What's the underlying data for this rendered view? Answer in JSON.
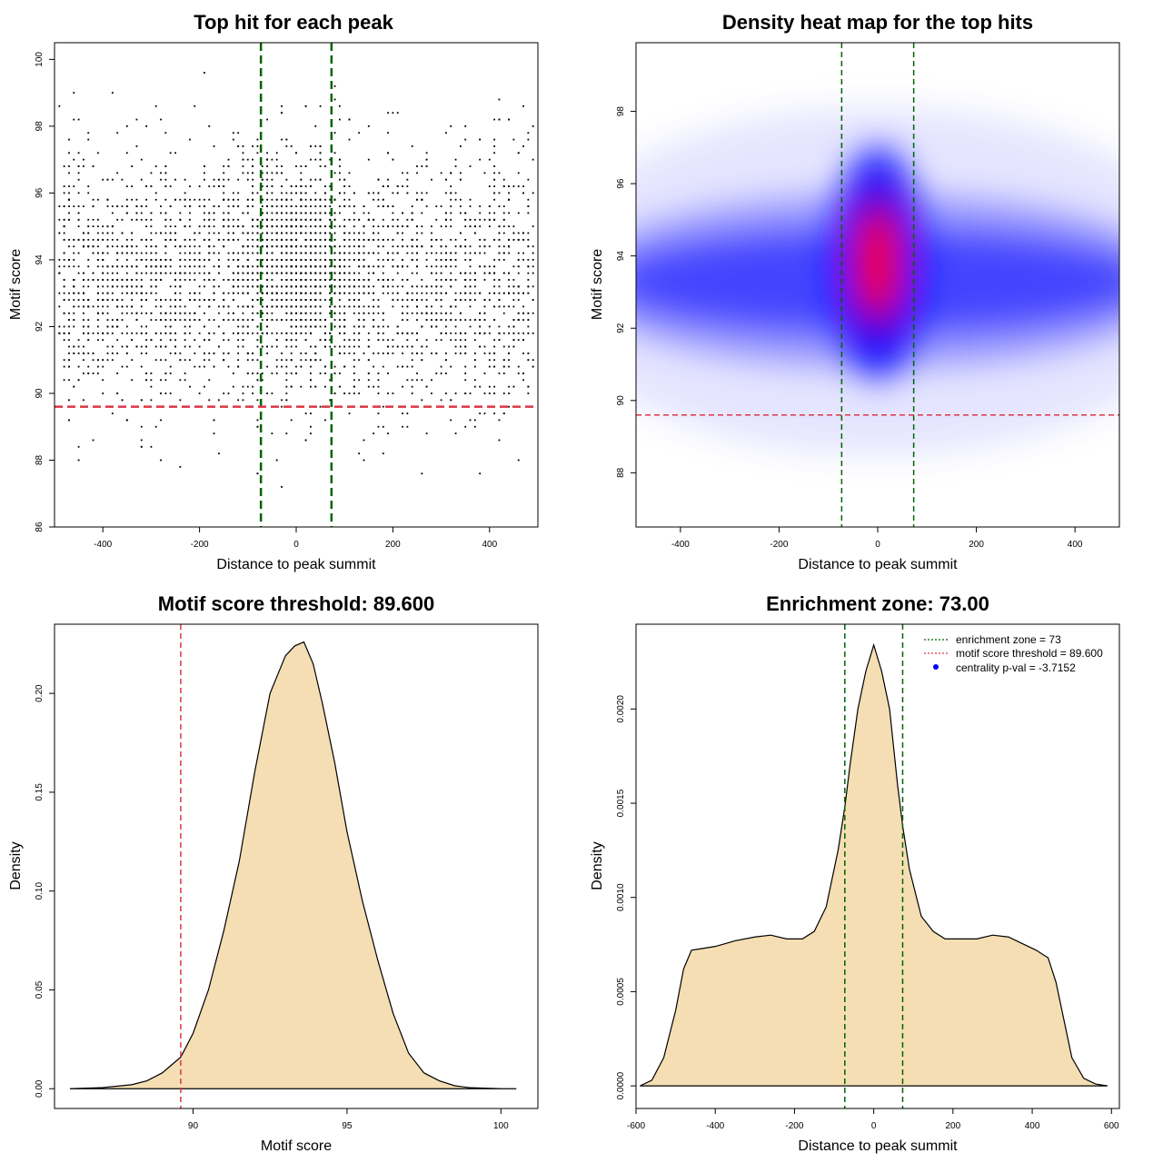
{
  "chart_data": [
    {
      "id": "scatter",
      "type": "scatter",
      "title": "Top hit for each peak",
      "xlabel": "Distance to peak summit",
      "ylabel": "Motif score",
      "xlim": [
        -500,
        500
      ],
      "ylim": [
        86,
        100.5
      ],
      "xticks": [
        -400,
        -200,
        0,
        200,
        400
      ],
      "yticks": [
        86,
        88,
        90,
        92,
        94,
        96,
        98,
        100
      ],
      "vlines": [
        -73,
        73
      ],
      "hline": 89.6,
      "point_model": {
        "x_range": [
          -490,
          490
        ],
        "x_center_sd": 60,
        "score_mean": 93.4,
        "score_sd": 1.9,
        "score_center_mean": 94.0,
        "score_center_sd": 1.4,
        "score_step": 0.2,
        "n_points": 4200
      }
    },
    {
      "id": "heatmap",
      "type": "heatmap",
      "title": "Density heat map for the top hits",
      "xlabel": "Distance to peak summit",
      "ylabel": "Motif score",
      "xlim": [
        -490,
        490
      ],
      "ylim": [
        86.5,
        99.9
      ],
      "xticks": [
        -400,
        -200,
        0,
        200,
        400
      ],
      "yticks": [
        88,
        90,
        92,
        94,
        96,
        98
      ],
      "vlines": [
        -73,
        73
      ],
      "hline": 89.6,
      "density_model": {
        "center_x": 0,
        "center_y": 93.8,
        "center_sx": 50,
        "center_sy": 1.4,
        "band_y": 93.3,
        "band_sy": 1.5
      },
      "colors": {
        "low": "#ffffff",
        "mid": "#0000ff",
        "high": "#ff0000"
      }
    },
    {
      "id": "score_density",
      "type": "area",
      "title": "Motif score threshold: 89.600",
      "xlabel": "Motif score",
      "ylabel": "Density",
      "xlim": [
        85.5,
        101.2
      ],
      "ylim": [
        -0.01,
        0.235
      ],
      "xticks": [
        90,
        95,
        100
      ],
      "yticks": [
        0.0,
        0.05,
        0.1,
        0.15,
        0.2
      ],
      "ytick_labels": [
        "0.00",
        "0.05",
        "0.10",
        "0.15",
        "0.20"
      ],
      "x": [
        86.0,
        87.0,
        88.0,
        88.5,
        89.0,
        89.3,
        89.6,
        90.0,
        90.5,
        91.0,
        91.5,
        92.0,
        92.5,
        93.0,
        93.3,
        93.6,
        93.9,
        94.2,
        94.6,
        95.0,
        95.5,
        96.0,
        96.5,
        97.0,
        97.5,
        98.0,
        98.5,
        99.0,
        100.0,
        100.5
      ],
      "y": [
        0.0,
        0.0005,
        0.002,
        0.004,
        0.008,
        0.012,
        0.016,
        0.028,
        0.05,
        0.08,
        0.115,
        0.16,
        0.2,
        0.219,
        0.224,
        0.226,
        0.215,
        0.195,
        0.165,
        0.13,
        0.095,
        0.065,
        0.038,
        0.018,
        0.008,
        0.004,
        0.0015,
        0.0005,
        0.0,
        0.0
      ],
      "vline": 89.6,
      "fill": "#f5deb3"
    },
    {
      "id": "distance_density",
      "type": "area",
      "title": "Enrichment zone: 73.00",
      "xlabel": "Distance to peak summit",
      "ylabel": "Density",
      "xlim": [
        -600,
        620
      ],
      "ylim": [
        -0.00012,
        0.00245
      ],
      "xticks": [
        -600,
        -400,
        -200,
        0,
        200,
        400,
        600
      ],
      "yticks": [
        0.0,
        0.0005,
        0.001,
        0.0015,
        0.002
      ],
      "ytick_labels": [
        "0.0000",
        "0.0005",
        "0.0010",
        "0.0015",
        "0.0020"
      ],
      "x": [
        -590,
        -560,
        -530,
        -500,
        -480,
        -460,
        -430,
        -400,
        -350,
        -300,
        -260,
        -220,
        -180,
        -150,
        -120,
        -90,
        -73,
        -60,
        -40,
        -20,
        0,
        20,
        40,
        60,
        73,
        90,
        120,
        150,
        180,
        220,
        260,
        300,
        340,
        380,
        410,
        440,
        460,
        480,
        500,
        530,
        560,
        590
      ],
      "y": [
        0.0,
        3e-05,
        0.00015,
        0.0004,
        0.00062,
        0.00072,
        0.00073,
        0.00074,
        0.00077,
        0.00079,
        0.0008,
        0.00078,
        0.00078,
        0.00082,
        0.00095,
        0.00125,
        0.00148,
        0.0017,
        0.002,
        0.0022,
        0.00234,
        0.0022,
        0.002,
        0.0016,
        0.00138,
        0.00115,
        0.0009,
        0.00082,
        0.00078,
        0.00078,
        0.00078,
        0.0008,
        0.00079,
        0.00075,
        0.00072,
        0.00068,
        0.00055,
        0.00035,
        0.00015,
        4e-05,
        1e-05,
        0.0
      ],
      "vlines": [
        -73,
        73
      ],
      "fill": "#f5deb3",
      "legend": [
        "enrichment zone = 73",
        "motif score threshold = 89.600",
        "centrality p-val = -3.7152"
      ],
      "legend_position": "top-right"
    }
  ],
  "colors": {
    "green": "#006400",
    "red": "#dc3545",
    "point": "#000000",
    "area_fill": "#f5deb3",
    "legend_dot": "#0000ff"
  }
}
